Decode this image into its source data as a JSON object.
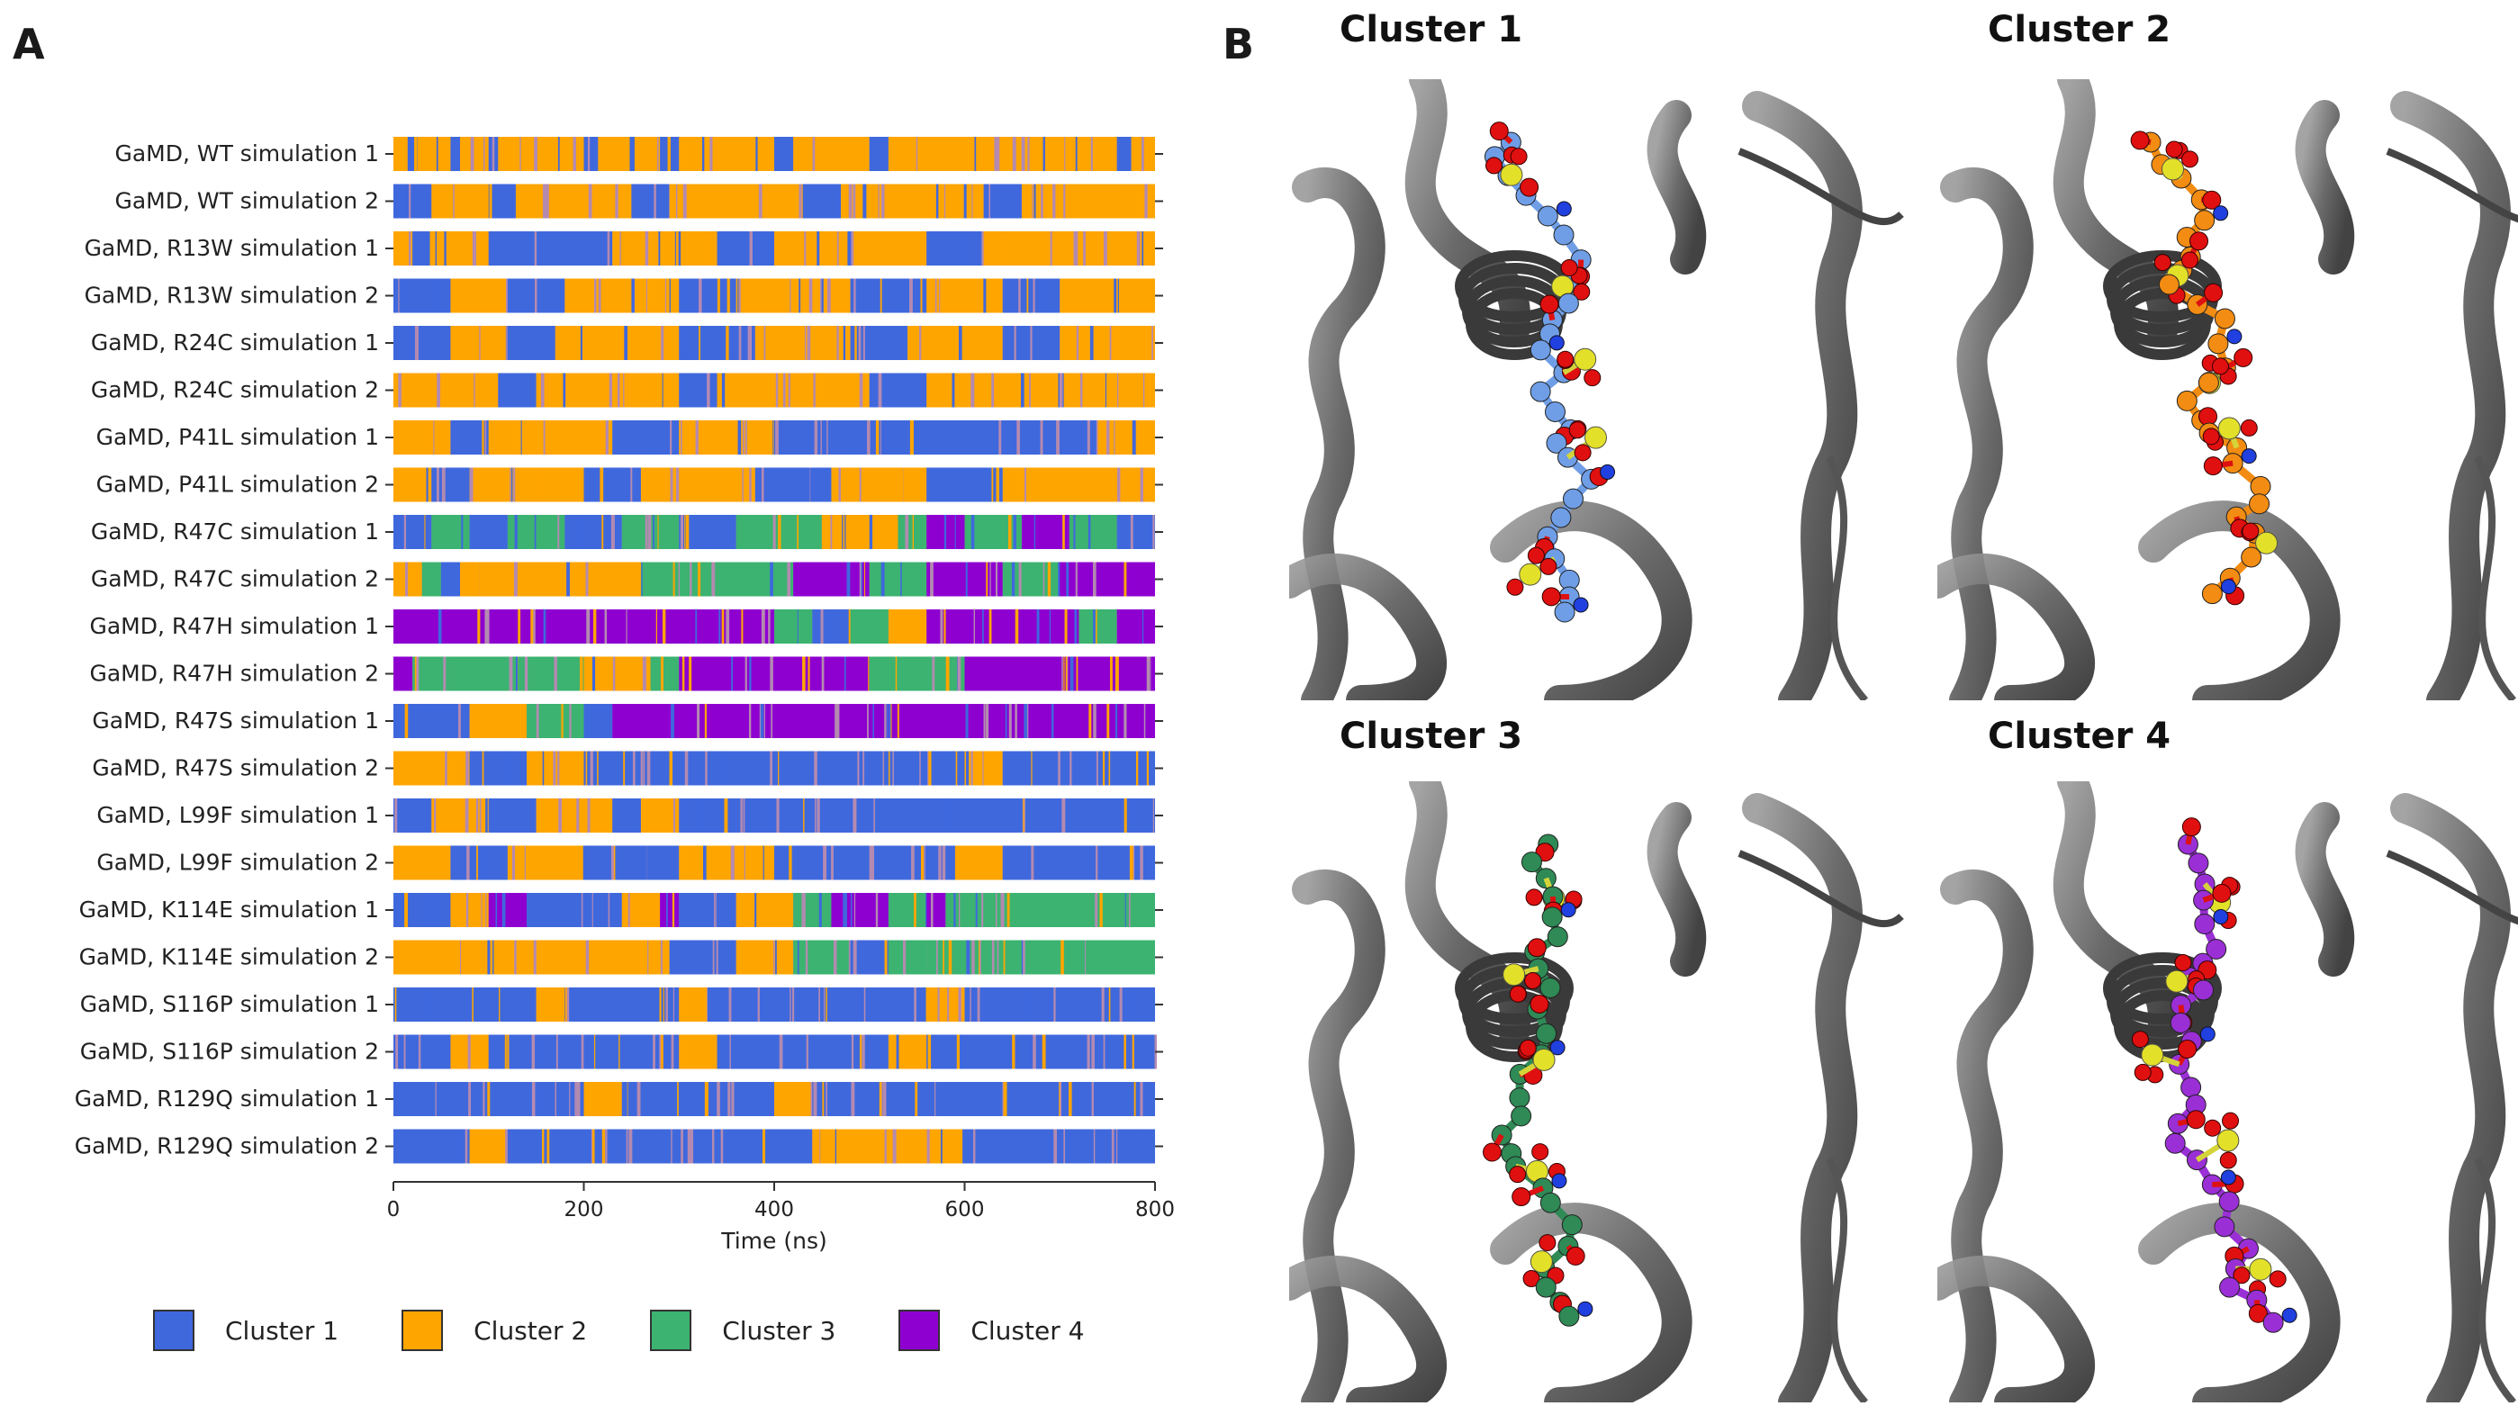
{
  "panel_a_letter": "A",
  "panel_b_letter": "B",
  "chart_data": {
    "type": "timeline",
    "title": "",
    "xlabel": "Time (ns)",
    "ylabel": "",
    "xlim": [
      0,
      800
    ],
    "xticks": [
      0,
      200,
      400,
      600,
      800
    ],
    "rows": [
      {
        "label": "GaMD, WT simulation 1",
        "segments": [
          [
            0,
            15,
            2
          ],
          [
            15,
            25,
            1
          ],
          [
            25,
            60,
            2
          ],
          [
            60,
            70,
            1
          ],
          [
            70,
            100,
            2
          ],
          [
            100,
            110,
            1
          ],
          [
            110,
            200,
            2
          ],
          [
            200,
            215,
            1
          ],
          [
            215,
            280,
            2
          ],
          [
            280,
            300,
            1
          ],
          [
            300,
            400,
            2
          ],
          [
            400,
            420,
            1
          ],
          [
            420,
            500,
            2
          ],
          [
            500,
            520,
            1
          ],
          [
            520,
            760,
            2
          ],
          [
            760,
            775,
            1
          ],
          [
            775,
            800,
            2
          ]
        ]
      },
      {
        "label": "GaMD, WT simulation 2",
        "segments": [
          [
            0,
            40,
            1
          ],
          [
            40,
            100,
            2
          ],
          [
            100,
            130,
            1
          ],
          [
            130,
            250,
            2
          ],
          [
            250,
            290,
            1
          ],
          [
            290,
            430,
            2
          ],
          [
            430,
            470,
            1
          ],
          [
            470,
            620,
            2
          ],
          [
            620,
            660,
            1
          ],
          [
            660,
            800,
            2
          ]
        ]
      },
      {
        "label": "GaMD, R13W simulation 1",
        "segments": [
          [
            0,
            20,
            2
          ],
          [
            20,
            40,
            1
          ],
          [
            40,
            100,
            2
          ],
          [
            100,
            230,
            1
          ],
          [
            230,
            340,
            2
          ],
          [
            340,
            400,
            1
          ],
          [
            400,
            560,
            2
          ],
          [
            560,
            620,
            1
          ],
          [
            620,
            800,
            2
          ]
        ]
      },
      {
        "label": "GaMD, R13W simulation 2",
        "segments": [
          [
            0,
            60,
            1
          ],
          [
            60,
            120,
            2
          ],
          [
            120,
            180,
            1
          ],
          [
            180,
            300,
            2
          ],
          [
            300,
            360,
            1
          ],
          [
            360,
            480,
            2
          ],
          [
            480,
            560,
            1
          ],
          [
            560,
            640,
            2
          ],
          [
            640,
            700,
            1
          ],
          [
            700,
            800,
            2
          ]
        ]
      },
      {
        "label": "GaMD, R24C simulation 1",
        "segments": [
          [
            0,
            60,
            1
          ],
          [
            60,
            120,
            2
          ],
          [
            120,
            170,
            1
          ],
          [
            170,
            300,
            2
          ],
          [
            300,
            380,
            1
          ],
          [
            380,
            480,
            2
          ],
          [
            480,
            540,
            1
          ],
          [
            540,
            640,
            2
          ],
          [
            640,
            700,
            1
          ],
          [
            700,
            800,
            2
          ]
        ]
      },
      {
        "label": "GaMD, R24C simulation 2",
        "segments": [
          [
            0,
            110,
            2
          ],
          [
            110,
            150,
            1
          ],
          [
            150,
            300,
            2
          ],
          [
            300,
            340,
            1
          ],
          [
            340,
            500,
            2
          ],
          [
            500,
            560,
            1
          ],
          [
            560,
            800,
            2
          ]
        ]
      },
      {
        "label": "GaMD, P41L simulation 1",
        "segments": [
          [
            0,
            60,
            2
          ],
          [
            60,
            100,
            1
          ],
          [
            100,
            230,
            2
          ],
          [
            230,
            300,
            1
          ],
          [
            300,
            400,
            2
          ],
          [
            400,
            740,
            1
          ],
          [
            740,
            800,
            2
          ]
        ]
      },
      {
        "label": "GaMD, P41L simulation 2",
        "segments": [
          [
            0,
            40,
            2
          ],
          [
            40,
            80,
            1
          ],
          [
            80,
            200,
            2
          ],
          [
            200,
            260,
            1
          ],
          [
            260,
            380,
            2
          ],
          [
            380,
            460,
            1
          ],
          [
            460,
            560,
            2
          ],
          [
            560,
            640,
            1
          ],
          [
            640,
            800,
            2
          ]
        ]
      },
      {
        "label": "GaMD, R47C simulation 1",
        "segments": [
          [
            0,
            40,
            1
          ],
          [
            40,
            80,
            3
          ],
          [
            80,
            120,
            1
          ],
          [
            120,
            180,
            3
          ],
          [
            180,
            240,
            1
          ],
          [
            240,
            300,
            3
          ],
          [
            300,
            360,
            1
          ],
          [
            360,
            450,
            3
          ],
          [
            450,
            530,
            2
          ],
          [
            530,
            560,
            3
          ],
          [
            560,
            600,
            4
          ],
          [
            600,
            660,
            3
          ],
          [
            660,
            710,
            4
          ],
          [
            710,
            760,
            3
          ],
          [
            760,
            800,
            1
          ]
        ]
      },
      {
        "label": "GaMD, R47C simulation 2",
        "segments": [
          [
            0,
            30,
            2
          ],
          [
            30,
            50,
            3
          ],
          [
            50,
            70,
            1
          ],
          [
            70,
            90,
            2
          ],
          [
            90,
            260,
            2
          ],
          [
            260,
            420,
            3
          ],
          [
            420,
            500,
            4
          ],
          [
            500,
            560,
            3
          ],
          [
            560,
            640,
            4
          ],
          [
            640,
            700,
            3
          ],
          [
            700,
            800,
            4
          ]
        ]
      },
      {
        "label": "GaMD, R47H simulation 1",
        "segments": [
          [
            0,
            400,
            4
          ],
          [
            400,
            440,
            3
          ],
          [
            440,
            480,
            1
          ],
          [
            480,
            520,
            3
          ],
          [
            520,
            560,
            2
          ],
          [
            560,
            720,
            4
          ],
          [
            720,
            760,
            3
          ],
          [
            760,
            800,
            4
          ]
        ]
      },
      {
        "label": "GaMD, R47H simulation 2",
        "segments": [
          [
            0,
            20,
            4
          ],
          [
            20,
            60,
            3
          ],
          [
            60,
            200,
            3
          ],
          [
            200,
            270,
            2
          ],
          [
            270,
            300,
            3
          ],
          [
            300,
            500,
            4
          ],
          [
            500,
            600,
            3
          ],
          [
            600,
            800,
            4
          ]
        ]
      },
      {
        "label": "GaMD, R47S simulation 1",
        "segments": [
          [
            0,
            80,
            1
          ],
          [
            80,
            140,
            2
          ],
          [
            140,
            200,
            3
          ],
          [
            200,
            230,
            1
          ],
          [
            230,
            800,
            4
          ]
        ]
      },
      {
        "label": "GaMD, R47S simulation 2",
        "segments": [
          [
            0,
            80,
            2
          ],
          [
            80,
            140,
            1
          ],
          [
            140,
            200,
            2
          ],
          [
            200,
            600,
            1
          ],
          [
            600,
            640,
            2
          ],
          [
            640,
            800,
            1
          ]
        ]
      },
      {
        "label": "GaMD, L99F simulation 1",
        "segments": [
          [
            0,
            40,
            1
          ],
          [
            40,
            100,
            2
          ],
          [
            100,
            150,
            1
          ],
          [
            150,
            230,
            2
          ],
          [
            230,
            260,
            1
          ],
          [
            260,
            300,
            2
          ],
          [
            300,
            800,
            1
          ]
        ]
      },
      {
        "label": "GaMD, L99F simulation 2",
        "segments": [
          [
            0,
            60,
            2
          ],
          [
            60,
            120,
            1
          ],
          [
            120,
            200,
            2
          ],
          [
            200,
            300,
            1
          ],
          [
            300,
            400,
            2
          ],
          [
            400,
            590,
            1
          ],
          [
            590,
            640,
            2
          ],
          [
            640,
            800,
            1
          ]
        ]
      },
      {
        "label": "GaMD, K114E simulation 1",
        "segments": [
          [
            0,
            60,
            1
          ],
          [
            60,
            100,
            2
          ],
          [
            100,
            140,
            4
          ],
          [
            140,
            240,
            1
          ],
          [
            240,
            280,
            2
          ],
          [
            280,
            300,
            4
          ],
          [
            300,
            360,
            1
          ],
          [
            360,
            420,
            2
          ],
          [
            420,
            460,
            3
          ],
          [
            460,
            520,
            4
          ],
          [
            520,
            560,
            3
          ],
          [
            560,
            580,
            4
          ],
          [
            580,
            800,
            3
          ]
        ]
      },
      {
        "label": "GaMD, K114E simulation 2",
        "segments": [
          [
            0,
            290,
            2
          ],
          [
            290,
            360,
            1
          ],
          [
            360,
            420,
            2
          ],
          [
            420,
            480,
            3
          ],
          [
            480,
            520,
            1
          ],
          [
            520,
            560,
            3
          ],
          [
            560,
            800,
            3
          ]
        ]
      },
      {
        "label": "GaMD, S116P simulation 1",
        "segments": [
          [
            0,
            150,
            1
          ],
          [
            150,
            180,
            2
          ],
          [
            180,
            300,
            1
          ],
          [
            300,
            330,
            2
          ],
          [
            330,
            560,
            1
          ],
          [
            560,
            600,
            2
          ],
          [
            600,
            800,
            1
          ]
        ]
      },
      {
        "label": "GaMD, S116P simulation 2",
        "segments": [
          [
            0,
            60,
            1
          ],
          [
            60,
            100,
            2
          ],
          [
            100,
            300,
            1
          ],
          [
            300,
            340,
            2
          ],
          [
            340,
            520,
            1
          ],
          [
            520,
            560,
            2
          ],
          [
            560,
            800,
            1
          ]
        ]
      },
      {
        "label": "GaMD, R129Q simulation 1",
        "segments": [
          [
            0,
            200,
            1
          ],
          [
            200,
            240,
            2
          ],
          [
            240,
            400,
            1
          ],
          [
            400,
            440,
            2
          ],
          [
            440,
            800,
            1
          ]
        ]
      },
      {
        "label": "GaMD, R129Q simulation 2",
        "segments": [
          [
            0,
            80,
            1
          ],
          [
            80,
            120,
            2
          ],
          [
            120,
            440,
            1
          ],
          [
            440,
            600,
            2
          ],
          [
            600,
            800,
            1
          ]
        ]
      }
    ],
    "legend": {
      "placement": "bottom",
      "entries": [
        {
          "name": "Cluster 1",
          "color": "#3f68dd"
        },
        {
          "name": "Cluster 2",
          "color": "#ffa500"
        },
        {
          "name": "Cluster 3",
          "color": "#3cb371"
        },
        {
          "name": "Cluster 4",
          "color": "#8e00d0"
        }
      ]
    },
    "mix_color": "#b48ab0"
  },
  "panel_b": {
    "clusters": [
      {
        "title": "Cluster 1",
        "color": "#6f9ee6"
      },
      {
        "title": "Cluster 2",
        "color": "#f28c12"
      },
      {
        "title": "Cluster 3",
        "color": "#2f8a55"
      },
      {
        "title": "Cluster 4",
        "color": "#9a2fd6"
      }
    ]
  }
}
